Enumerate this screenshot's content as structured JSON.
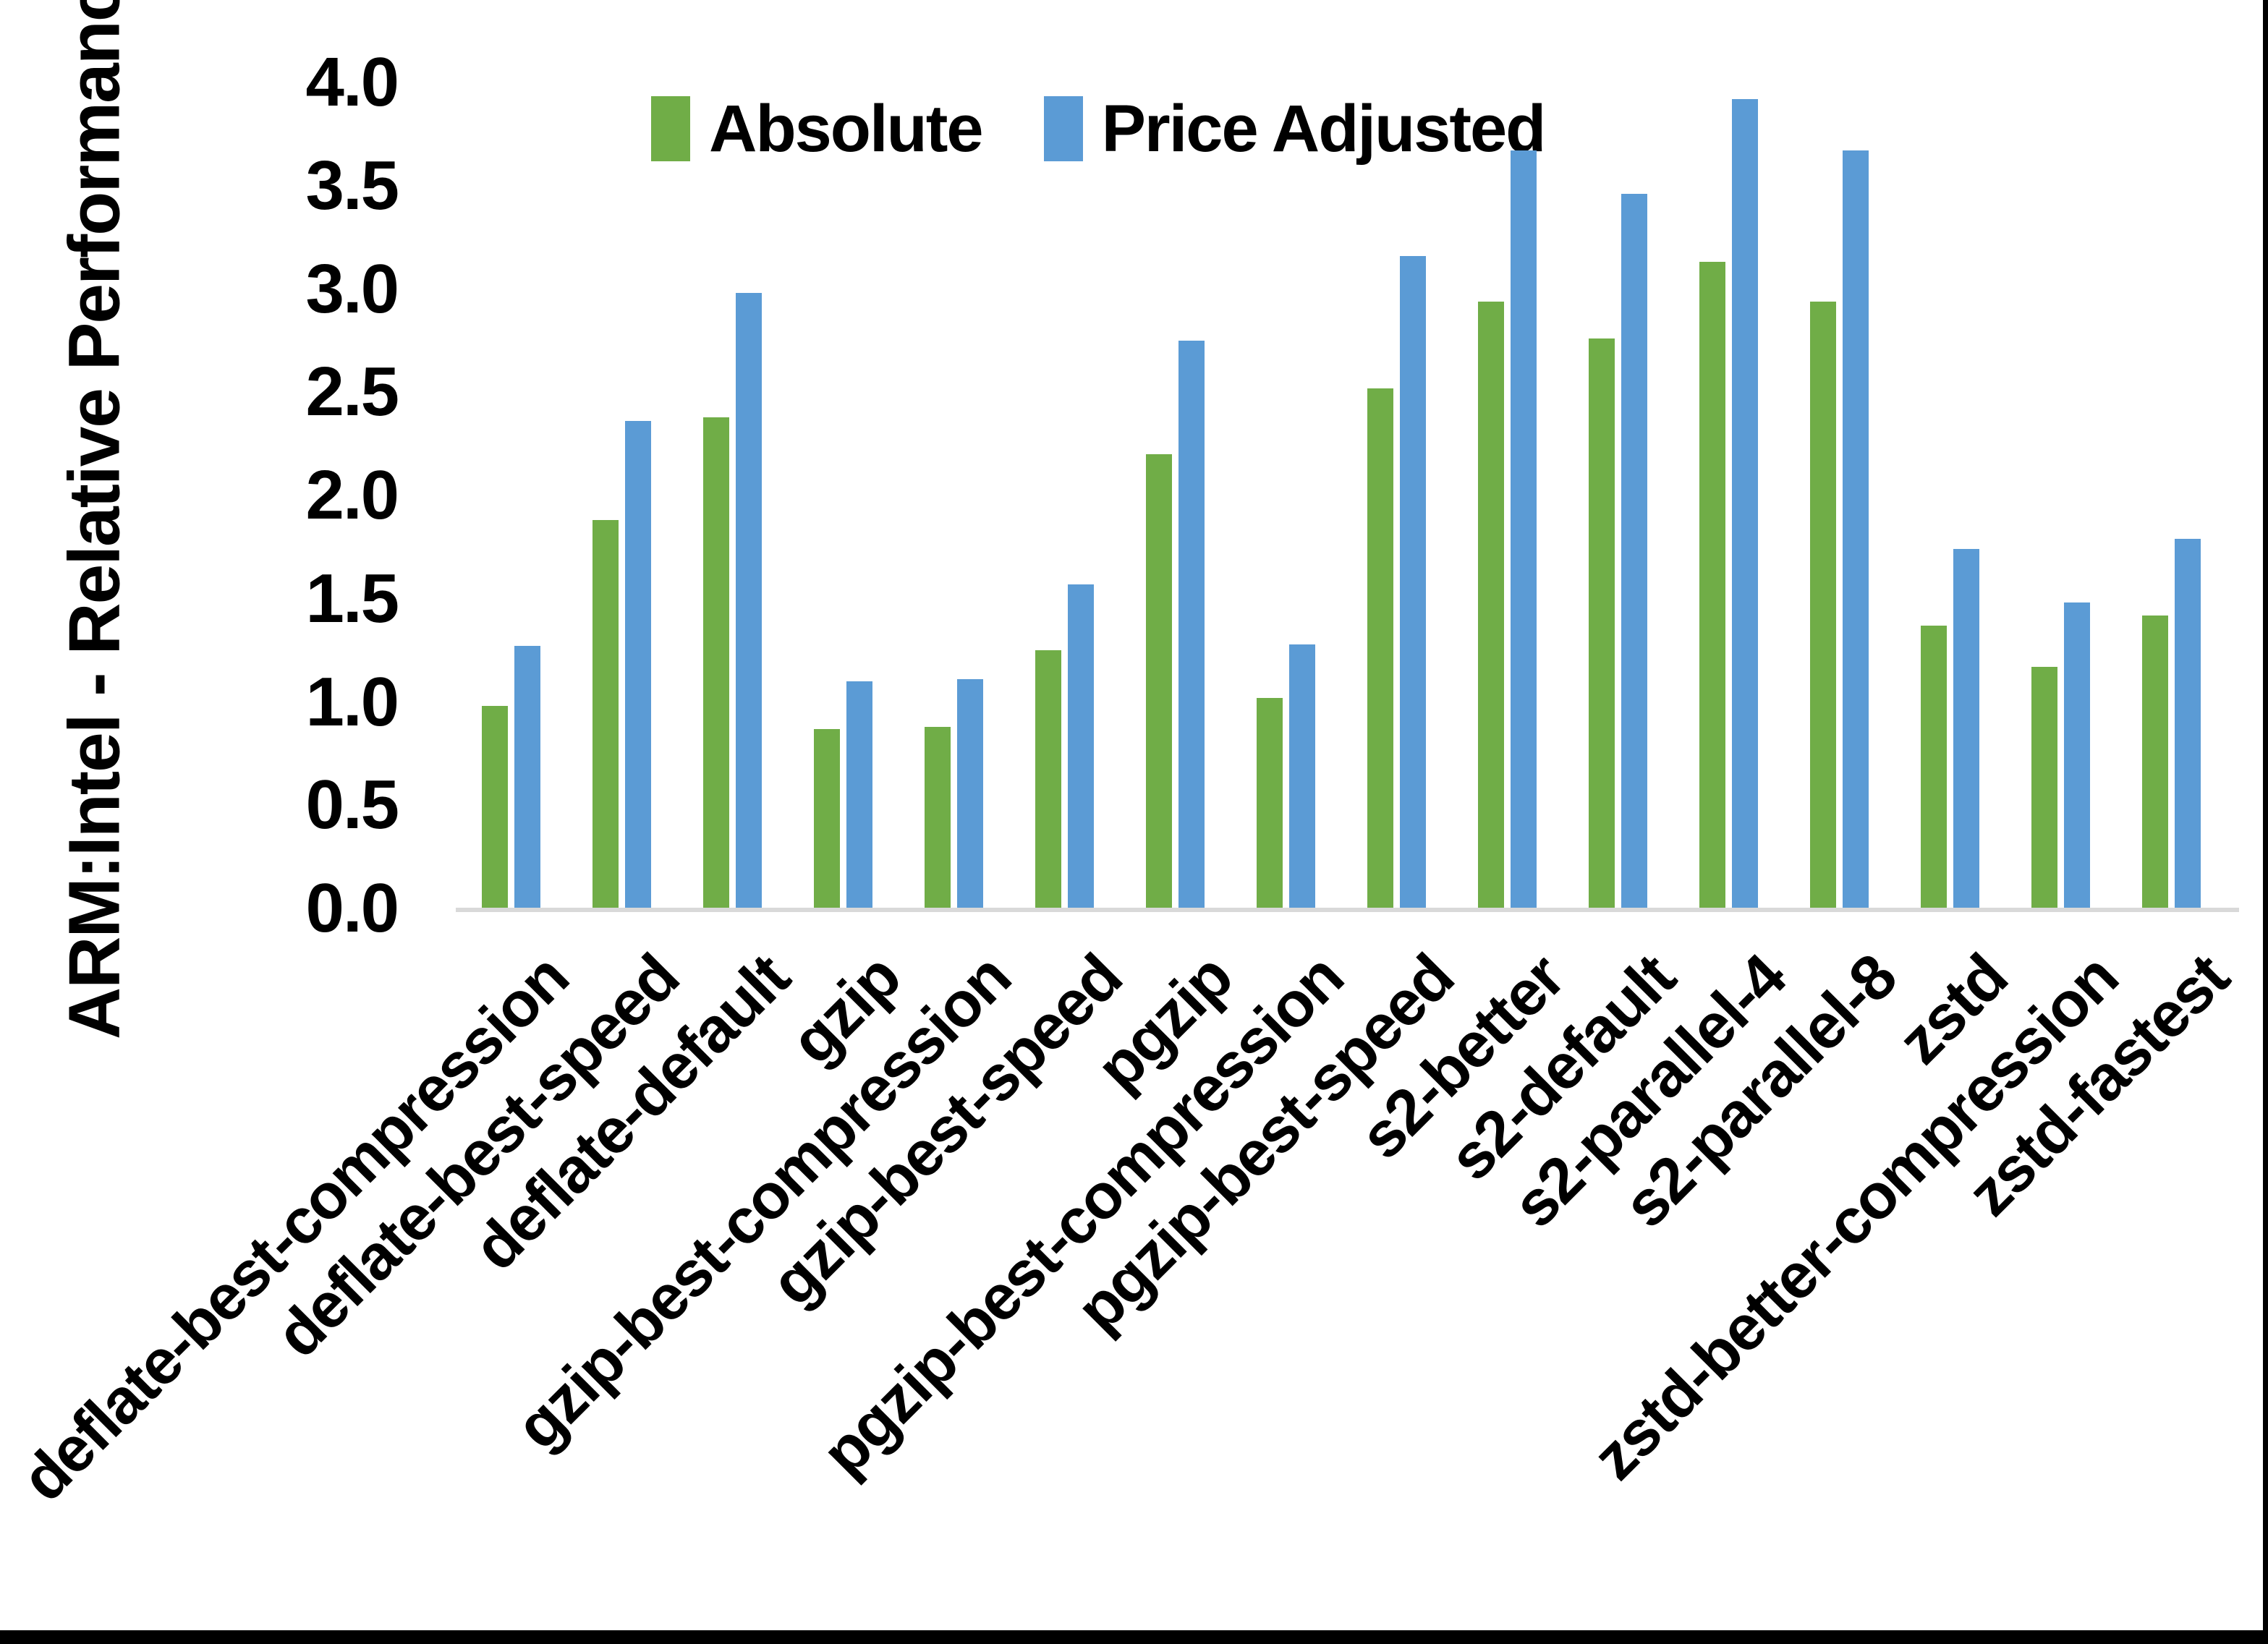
{
  "chart_data": {
    "type": "bar",
    "title": "",
    "ylabel": "ARM:Intel - Relative Performance",
    "xlabel": "",
    "ylim": [
      0,
      4.0
    ],
    "ytick_step": 0.5,
    "ytick_labels": [
      "0.0",
      "0.5",
      "1.0",
      "1.5",
      "2.0",
      "2.5",
      "3.0",
      "3.5",
      "4.0"
    ],
    "grid": false,
    "legend_position": "top",
    "categories": [
      "deflate-best-compression",
      "deflate-best-speed",
      "deflate-default",
      "gzip",
      "gzip-best-compression",
      "gzip-best-speed",
      "pgzip",
      "pgzip-best-compression",
      "pgzip-best-speed",
      "s2-better",
      "s2-default",
      "s2-parallel-4",
      "s2-parallel-8",
      "zstd",
      "zstd-better-compression",
      "zstd-fastest"
    ],
    "series": [
      {
        "name": "Absolute",
        "color": "#70AD47",
        "values": [
          0.98,
          1.88,
          2.38,
          0.87,
          0.88,
          1.25,
          2.2,
          1.02,
          2.52,
          2.94,
          2.76,
          3.13,
          2.94,
          1.37,
          1.17,
          1.42
        ]
      },
      {
        "name": "Price Adjusted",
        "color": "#5B9BD5",
        "values": [
          1.27,
          2.36,
          2.98,
          1.1,
          1.11,
          1.57,
          2.75,
          1.28,
          3.16,
          3.67,
          3.46,
          3.92,
          3.67,
          1.74,
          1.48,
          1.79
        ]
      }
    ],
    "axis_line_color": "#D9D9D9",
    "text_color": "#000000"
  }
}
